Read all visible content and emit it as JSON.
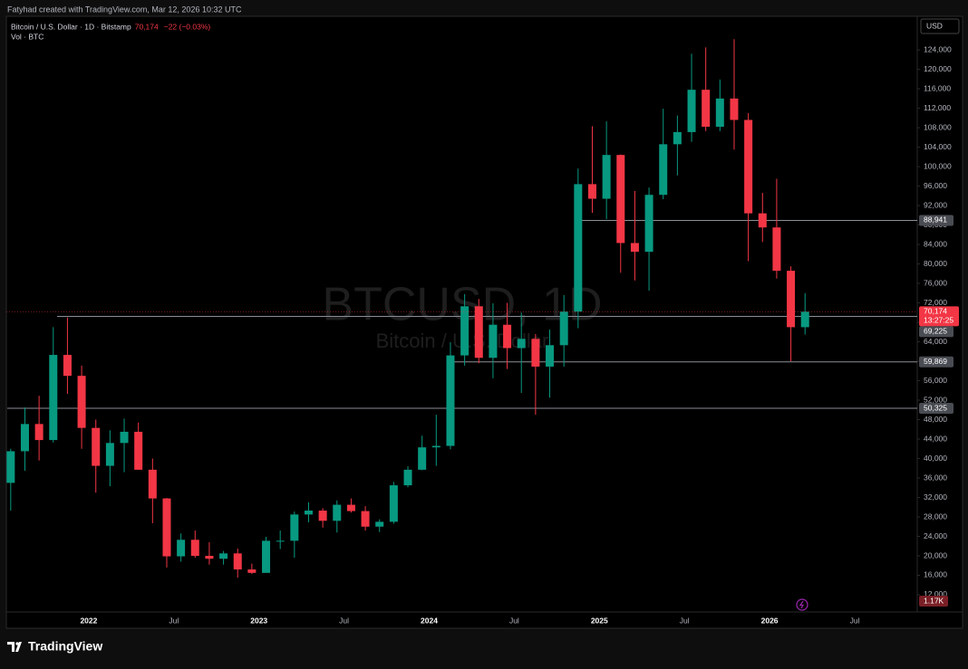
{
  "credit": "Fatyhad created with TradingView.com, Mar 12, 2026 10:32 UTC",
  "branding": "TradingView",
  "chart_data": {
    "type": "candlestick",
    "title": "Bitcoin / U.S. Dollar · 1D · Bitstamp",
    "last_label": "70,174",
    "change_label": "−22 (−0.03%)",
    "volume_title": "Vol · BTC",
    "watermark": "BTCUSD, 1D",
    "watermark_subtitle": "Bitcoin / U.S. Dollar",
    "currency": "USD",
    "volume_label": "1.17K",
    "categories": [
      null,
      null,
      null,
      null,
      null,
      null,
      "2022",
      null,
      null,
      null,
      null,
      null,
      "Jul",
      null,
      null,
      null,
      null,
      null,
      "2023",
      null,
      null,
      null,
      null,
      null,
      "Jul",
      null,
      null,
      null,
      null,
      null,
      "2024",
      null,
      null,
      null,
      null,
      null,
      "Jul",
      null,
      null,
      null,
      null,
      null,
      "2025",
      null,
      null,
      null,
      null,
      null,
      "Jul",
      null,
      null,
      null,
      null,
      null,
      "2026",
      null,
      null,
      null,
      null,
      null,
      "Jul",
      null
    ],
    "open": [
      35000,
      41500,
      47100,
      43800,
      61300,
      57000,
      46300,
      38500,
      43200,
      45500,
      37700,
      31800,
      19900,
      23300,
      20000,
      19400,
      20500,
      17200,
      16500,
      23100,
      23100,
      28500,
      29300,
      27200,
      30500,
      29200,
      26000,
      27000,
      34500,
      37700,
      42300,
      42600,
      61200,
      71300,
      60700,
      67500,
      62700,
      64600,
      58900,
      63300,
      70200,
      96400,
      93400,
      102400,
      84300,
      82500,
      94200,
      104600,
      107100,
      115800,
      108200,
      114000,
      109600,
      90400,
      87500,
      78600,
      67000,
      null,
      null,
      null,
      null,
      null
    ],
    "high": [
      42000,
      50500,
      52900,
      67000,
      69000,
      59100,
      48000,
      45800,
      48200,
      47400,
      40000,
      31900,
      24600,
      25200,
      22800,
      21000,
      21500,
      18400,
      23900,
      25200,
      29100,
      31000,
      29800,
      31400,
      31800,
      30200,
      27500,
      35200,
      38400,
      44700,
      49000,
      63900,
      73800,
      72800,
      71900,
      72000,
      70000,
      65600,
      66500,
      73600,
      99600,
      108300,
      109300,
      102500,
      95000,
      95700,
      111900,
      110500,
      123200,
      124500,
      117900,
      126200,
      111000,
      94600,
      97500,
      79500,
      74000,
      null,
      null,
      null,
      null,
      null
    ],
    "low": [
      29300,
      37500,
      39600,
      43300,
      53300,
      42000,
      33000,
      34300,
      37200,
      37700,
      26700,
      17600,
      18800,
      19600,
      18200,
      18200,
      15500,
      16300,
      16500,
      21400,
      19600,
      26900,
      25800,
      24800,
      28900,
      25200,
      24900,
      26600,
      34100,
      37600,
      38500,
      41900,
      59100,
      59600,
      56500,
      58400,
      53500,
      49000,
      52500,
      58900,
      66800,
      90500,
      89200,
      78200,
      76600,
      74500,
      93300,
      98200,
      105100,
      107300,
      107300,
      103500,
      80600,
      84500,
      77000,
      60000,
      65500,
      null,
      null,
      null,
      null,
      null
    ],
    "close": [
      41500,
      47100,
      43800,
      61300,
      57000,
      46300,
      38500,
      43200,
      45500,
      37700,
      31800,
      19900,
      23300,
      20000,
      19400,
      20500,
      17200,
      16500,
      23100,
      23100,
      28500,
      29300,
      27200,
      30500,
      29200,
      26000,
      27000,
      34500,
      37700,
      42300,
      42600,
      61200,
      71300,
      60700,
      67500,
      62700,
      64600,
      58900,
      63300,
      70200,
      96400,
      93400,
      102400,
      84300,
      82500,
      94200,
      104600,
      107100,
      115800,
      108200,
      114000,
      109600,
      90400,
      87500,
      78600,
      67000,
      70174,
      null,
      null,
      null,
      null,
      null
    ],
    "up_color": "#089981",
    "down_color": "#f23645",
    "log_scale": false,
    "grid": false,
    "ylim": [
      8650,
      130900
    ],
    "yticks": [
      {
        "value": 12000,
        "label": "12,000"
      },
      {
        "value": 16000,
        "label": "16,000"
      },
      {
        "value": 20000,
        "label": "20,000"
      },
      {
        "value": 24000,
        "label": "24,000"
      },
      {
        "value": 28000,
        "label": "28,000"
      },
      {
        "value": 32000,
        "label": "32,000"
      },
      {
        "value": 36000,
        "label": "36,000"
      },
      {
        "value": 40000,
        "label": "40,000"
      },
      {
        "value": 44000,
        "label": "44,000"
      },
      {
        "value": 48000,
        "label": "48,000"
      },
      {
        "value": 52000,
        "label": "52,000"
      },
      {
        "value": 56000,
        "label": "56,000"
      },
      {
        "value": 60000,
        "label": "60,000"
      },
      {
        "value": 64000,
        "label": "64,000"
      },
      {
        "value": 68000,
        "label": "68,000"
      },
      {
        "value": 72000,
        "label": "72,000"
      },
      {
        "value": 76000,
        "label": "76,000"
      },
      {
        "value": 80000,
        "label": "80,000"
      },
      {
        "value": 84000,
        "label": "84,000"
      },
      {
        "value": 88000,
        "label": "88,000"
      },
      {
        "value": 92000,
        "label": "92,000"
      },
      {
        "value": 96000,
        "label": "96,000"
      },
      {
        "value": 100000,
        "label": "100,000"
      },
      {
        "value": 104000,
        "label": "104,000"
      },
      {
        "value": 108000,
        "label": "108,000"
      },
      {
        "value": 112000,
        "label": "112,000"
      },
      {
        "value": 116000,
        "label": "116,000"
      },
      {
        "value": 120000,
        "label": "120,000"
      },
      {
        "value": 124000,
        "label": "124,000"
      }
    ],
    "levels": [
      {
        "value": 88941,
        "label": "88,941"
      },
      {
        "value": 69225,
        "label": "69,225"
      },
      {
        "value": 59869,
        "label": "59,869"
      },
      {
        "value": 50325,
        "label": "50,325"
      }
    ],
    "last_price": {
      "value": 70174,
      "label": "70,174"
    },
    "countdown": "13:27:25"
  }
}
